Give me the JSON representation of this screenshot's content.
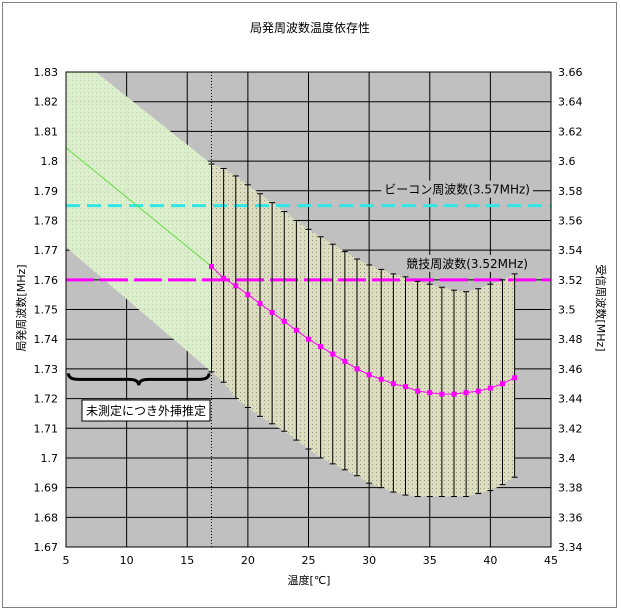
{
  "chart_data": {
    "type": "line",
    "title": "局発周波数温度依存性",
    "xlabel": "温度[℃]",
    "ylabel": "局発周波数[MHz]",
    "y2label": "受信周波数[MHz]",
    "xlim": [
      5,
      45
    ],
    "ylim": [
      1.67,
      1.83
    ],
    "y2lim": [
      3.34,
      3.66
    ],
    "x_ticks": [
      "5",
      "10",
      "15",
      "20",
      "25",
      "30",
      "35",
      "40",
      "45"
    ],
    "y_ticks": [
      "1.83",
      "1.82",
      "1.81",
      "1.8",
      "1.79",
      "1.78",
      "1.77",
      "1.76",
      "1.75",
      "1.74",
      "1.73",
      "1.72",
      "1.71",
      "1.7",
      "1.69",
      "1.68",
      "1.67"
    ],
    "y2_ticks": [
      "3.66",
      "3.64",
      "3.62",
      "3.6",
      "3.58",
      "3.56",
      "3.54",
      "3.52",
      "3.5",
      "3.48",
      "3.46",
      "3.44",
      "3.42",
      "3.4",
      "3.38",
      "3.36",
      "3.34"
    ],
    "grid": true,
    "colors": {
      "measured": "#ff00ff",
      "beacon_line": "#33e6e6",
      "competition_line": "#ff00ff",
      "extrapolation_line": "#66dd44",
      "extrapolation_band": "#dff0cf",
      "error_band": "#dcdcc0",
      "plot_bg": "#c0c0c0"
    },
    "measured_series": {
      "x": [
        17,
        18,
        19,
        20,
        21,
        22,
        23,
        24,
        25,
        26,
        27,
        28,
        29,
        30,
        31,
        32,
        33,
        34,
        35,
        36,
        37,
        38,
        39,
        40,
        41,
        42
      ],
      "y": [
        1.7645,
        1.7605,
        1.758,
        1.755,
        1.752,
        1.749,
        1.746,
        1.743,
        1.74,
        1.7375,
        1.735,
        1.7325,
        1.73,
        1.728,
        1.7265,
        1.725,
        1.724,
        1.7225,
        1.722,
        1.7215,
        1.7215,
        1.722,
        1.7225,
        1.7235,
        1.725,
        1.727
      ],
      "err_high": [
        1.799,
        1.7975,
        1.795,
        1.792,
        1.789,
        1.786,
        1.783,
        1.78,
        1.777,
        1.7745,
        1.772,
        1.7695,
        1.767,
        1.765,
        1.7635,
        1.762,
        1.761,
        1.7595,
        1.7585,
        1.7575,
        1.7565,
        1.756,
        1.757,
        1.7585,
        1.76,
        1.762
      ],
      "err_low": [
        1.729,
        1.7255,
        1.72,
        1.717,
        1.714,
        1.7115,
        1.709,
        1.706,
        1.703,
        1.7,
        1.698,
        1.696,
        1.694,
        1.6915,
        1.69,
        1.6885,
        1.6875,
        1.687,
        1.687,
        1.687,
        1.687,
        1.687,
        1.688,
        1.689,
        1.691,
        1.6935
      ]
    },
    "extrapolation": {
      "x": [
        5,
        17
      ],
      "y": [
        1.8045,
        1.7645
      ],
      "band_high": [
        1.838,
        1.799
      ],
      "band_low": [
        1.771,
        1.729
      ]
    },
    "reference_lines": [
      {
        "label": "ビーコン周波数(3.57MHz)",
        "y2": 3.57
      },
      {
        "label": "競技周波数(3.52MHz)",
        "y2": 3.52
      }
    ],
    "annotation": "未測定につき外挿推定"
  }
}
